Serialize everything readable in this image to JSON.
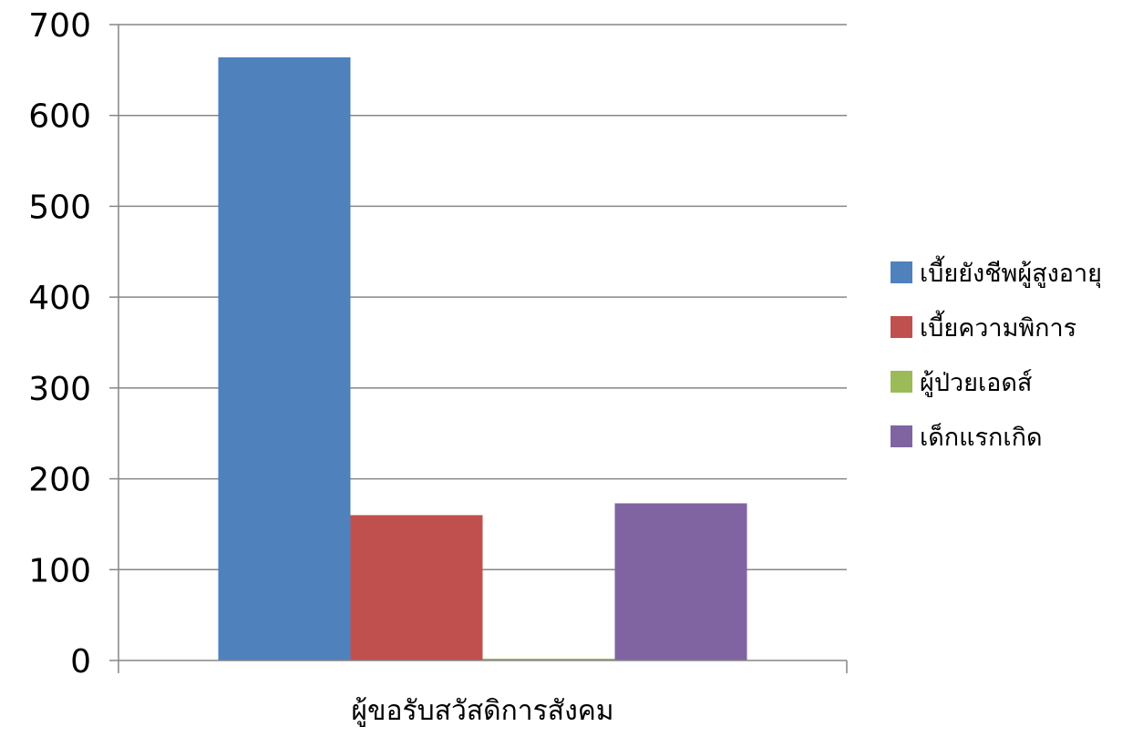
{
  "chart_data": {
    "type": "bar",
    "categories": [
      "ผู้ขอรับสวัสดิการสังคม"
    ],
    "series": [
      {
        "name": "เบี้ยยังชีพผู้สูงอายุ",
        "values": [
          664
        ],
        "color": "#4F81BD"
      },
      {
        "name": "เบี้ยความพิการ",
        "values": [
          160
        ],
        "color": "#C0504D"
      },
      {
        "name": "ผู้ป่วยเอดส์",
        "values": [
          2
        ],
        "color": "#9BBB59"
      },
      {
        "name": "เด็กแรกเกิด",
        "values": [
          173
        ],
        "color": "#8064A2"
      }
    ],
    "y_ticks": [
      "0",
      "100",
      "200",
      "300",
      "400",
      "500",
      "600",
      "700"
    ],
    "ylim": [
      0,
      700
    ],
    "grid": true,
    "legend_position": "right",
    "gridline_color": "#868686",
    "axis_color": "#868686"
  }
}
